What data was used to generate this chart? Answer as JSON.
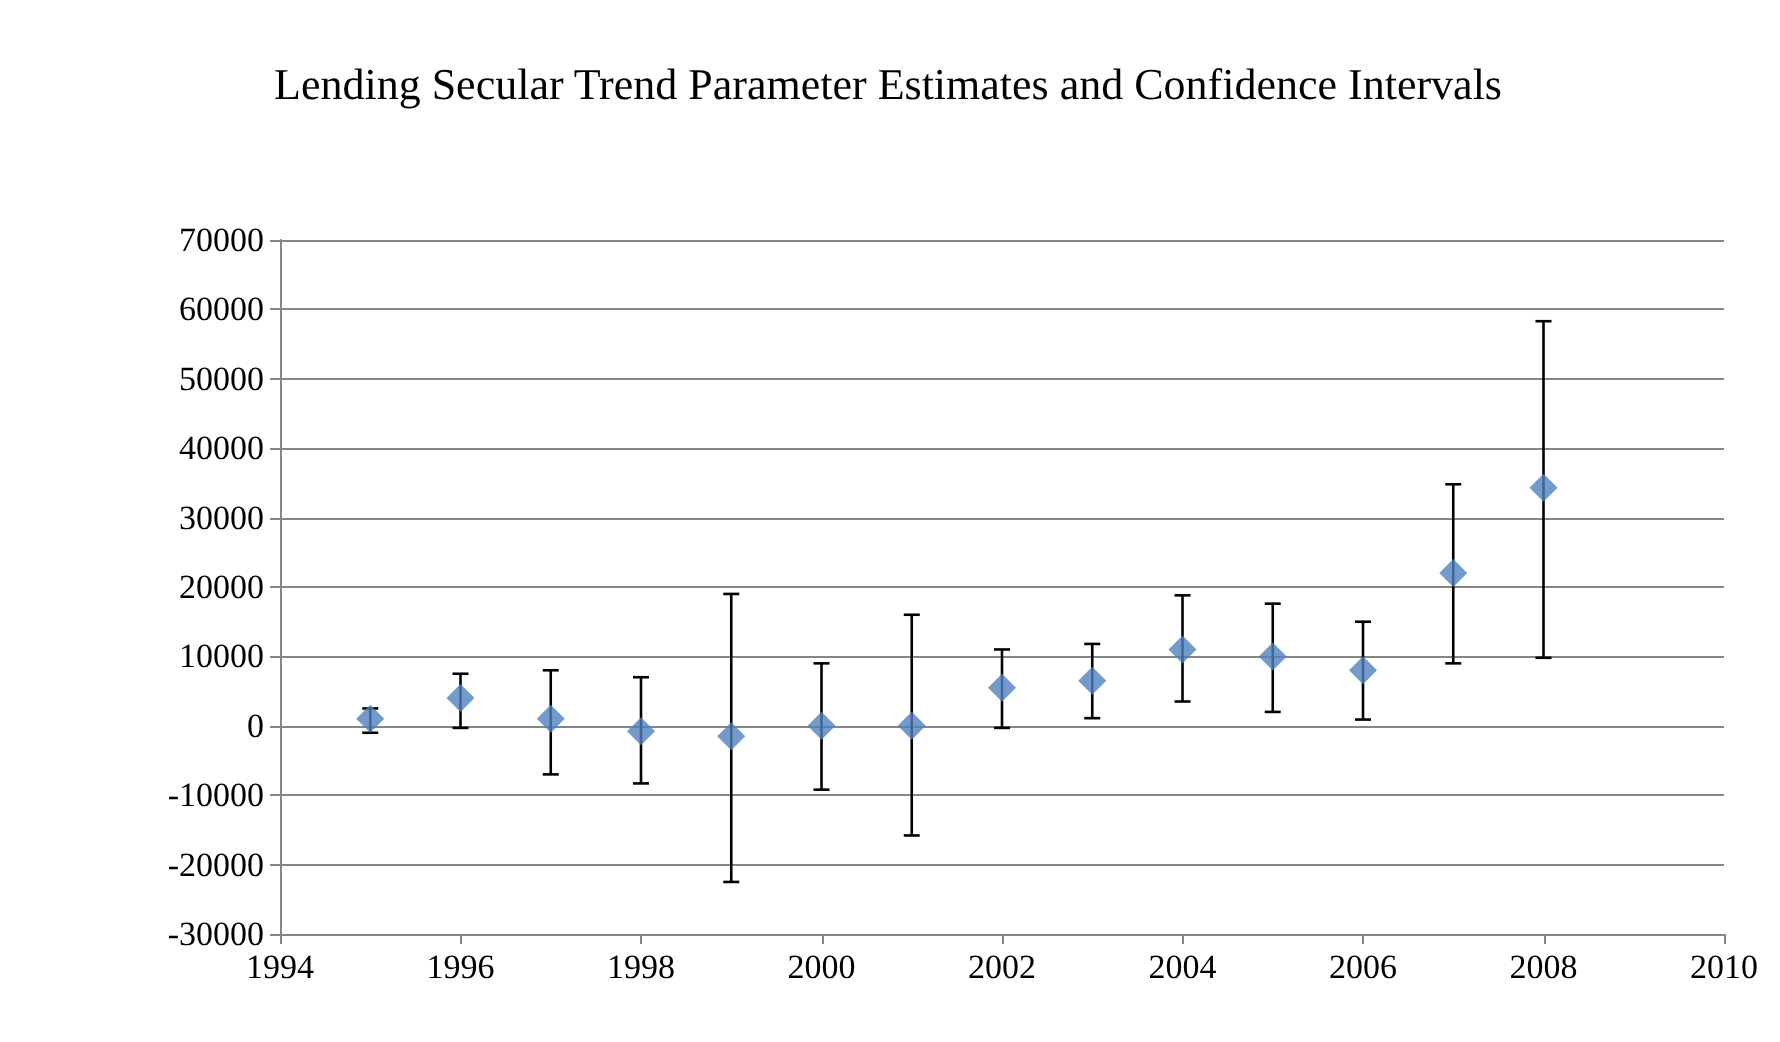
{
  "chart_data": {
    "type": "scatter",
    "title": "Lending Secular Trend Parameter Estimates and Confidence Intervals",
    "x": [
      1995,
      1996,
      1997,
      1998,
      1999,
      2000,
      2001,
      2002,
      2003,
      2004,
      2005,
      2006,
      2007,
      2008
    ],
    "series": [
      {
        "color": "#4f81bd",
        "values": [
          1000,
          4000,
          1000,
          -800,
          -1500,
          0,
          0,
          5500,
          6500,
          11000,
          10000,
          8000,
          22000,
          34300
        ],
        "errors": [
          [
            -1000,
            2500
          ],
          [
            -300,
            7500
          ],
          [
            -7000,
            8000
          ],
          [
            -8300,
            7000
          ],
          [
            -22500,
            19000
          ],
          [
            -9200,
            9000
          ],
          [
            -15800,
            16000
          ],
          [
            -300,
            11000
          ],
          [
            1100,
            11800
          ],
          [
            3500,
            18800
          ],
          [
            2000,
            17600
          ],
          [
            900,
            15000
          ],
          [
            9000,
            34800
          ],
          [
            9800,
            58300
          ]
        ]
      }
    ],
    "xlim": [
      1994,
      2010
    ],
    "xticks": [
      1994,
      1996,
      1998,
      2000,
      2002,
      2004,
      2006,
      2008,
      2010
    ],
    "ylim": [
      -30000,
      70000
    ],
    "yticks": [
      -30000,
      -20000,
      -10000,
      0,
      10000,
      20000,
      30000,
      40000,
      50000,
      60000,
      70000
    ],
    "grid": "y",
    "marker": "diamond"
  }
}
